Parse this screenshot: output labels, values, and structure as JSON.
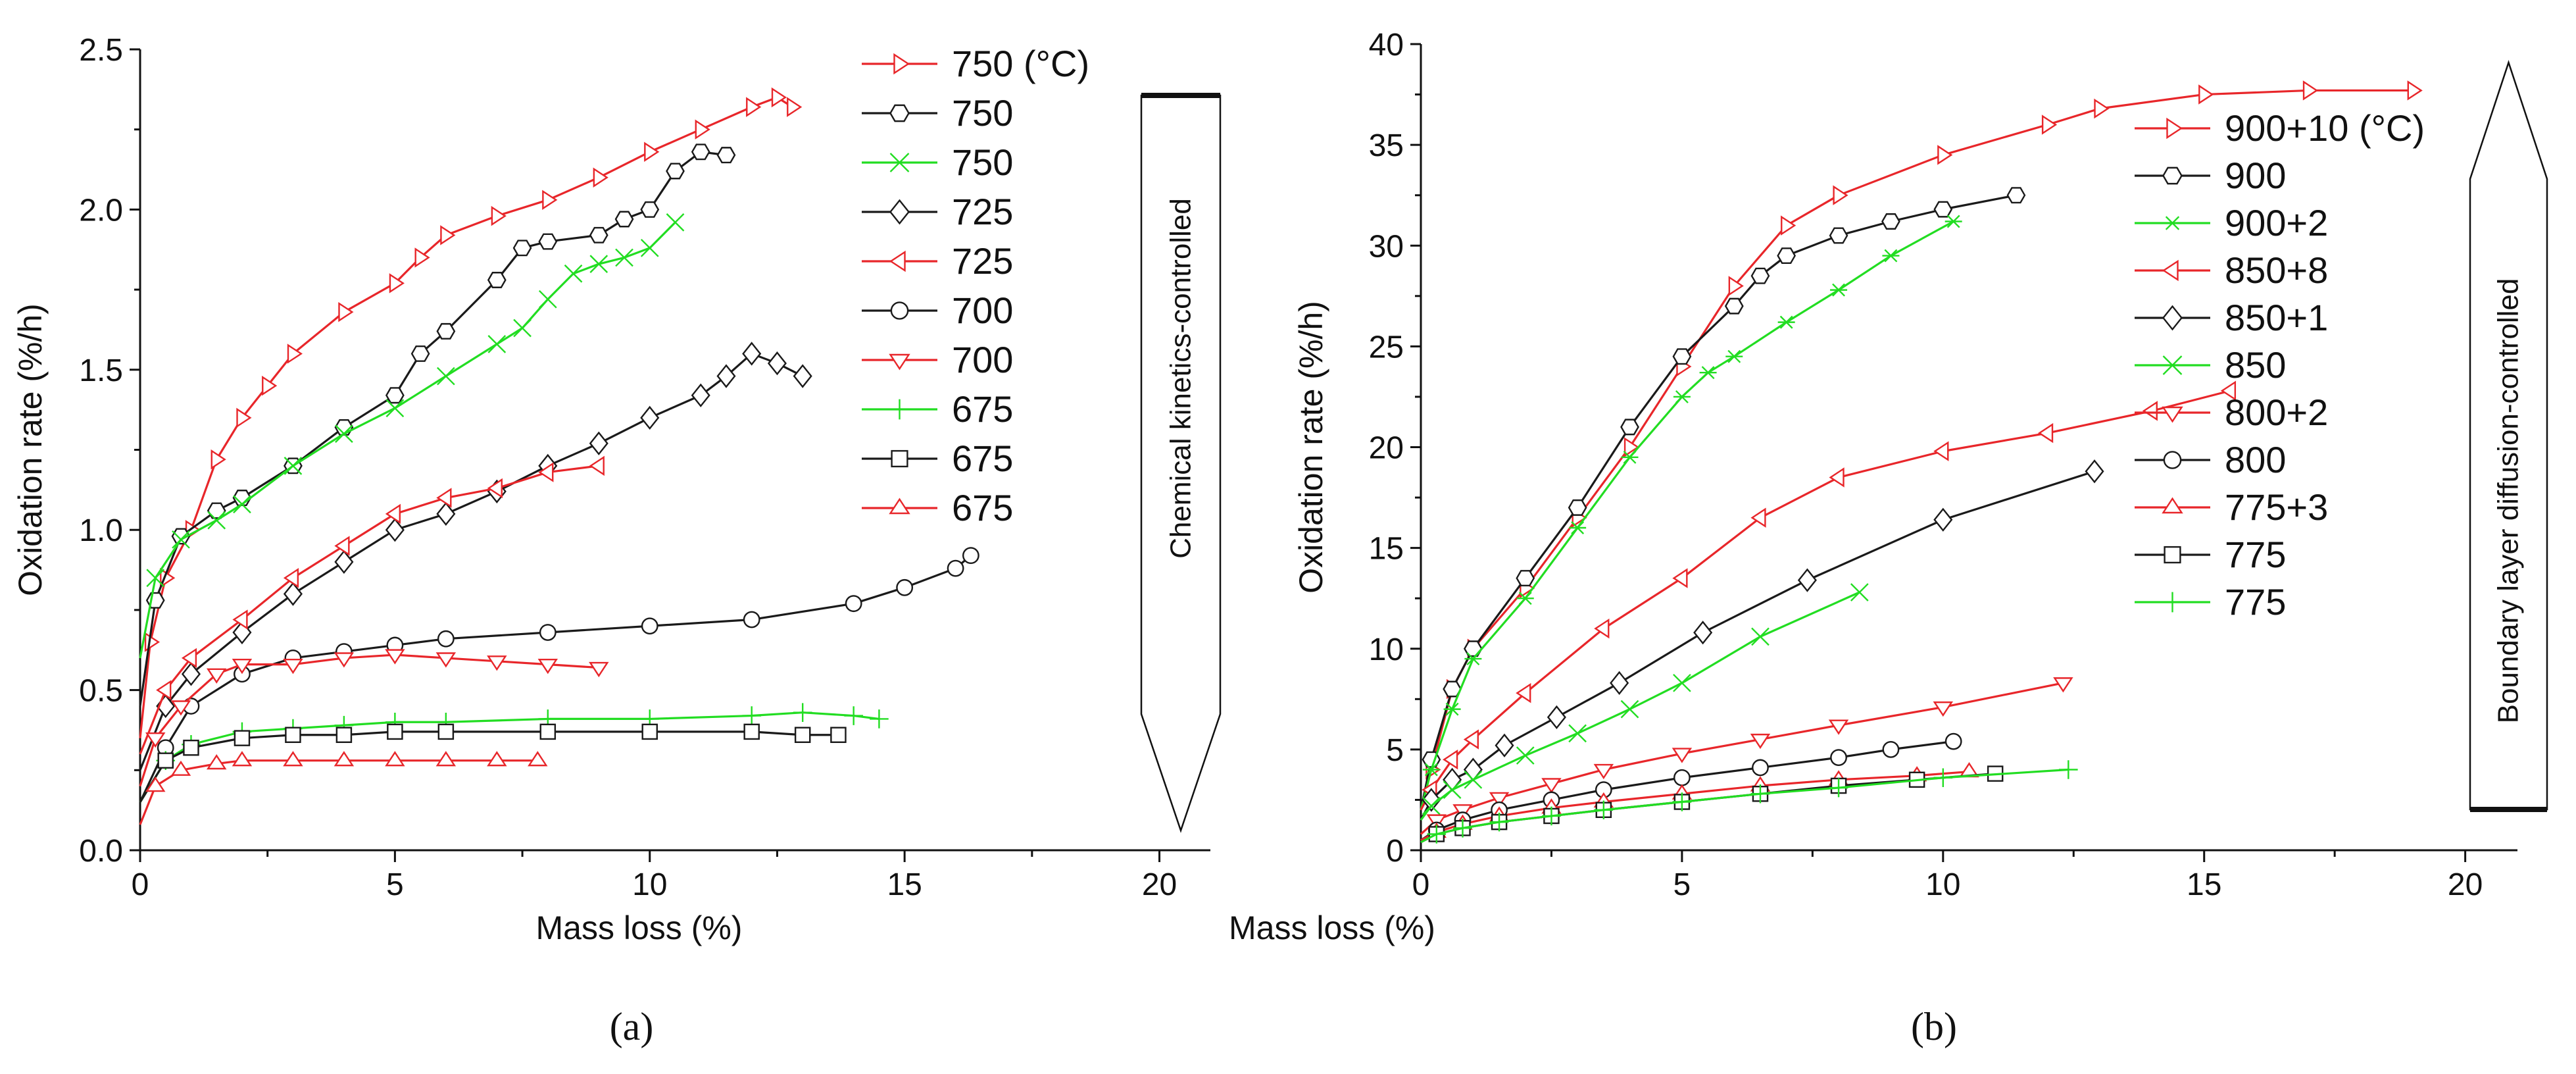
{
  "figure": {
    "panel_a_label": "(a)",
    "panel_b_label": "(b)"
  },
  "chart_data": [
    {
      "type": "line",
      "panel": "(a)",
      "title": "",
      "xlabel": "Mass loss (%)",
      "ylabel": "Oxidation rate (%/h)",
      "xlim": [
        0,
        21
      ],
      "ylim": [
        0,
        2.5
      ],
      "xticks": [
        "0",
        "5",
        "10",
        "15",
        "20"
      ],
      "yticks": [
        "0.0",
        "0.5",
        "1.0",
        "1.5",
        "2.0",
        "2.5"
      ],
      "regime_label": "Chemical kinetics-controlled",
      "legend_position": "top-right",
      "series": [
        {
          "name": "750 (°C)",
          "color": "#e8262a",
          "marker": "triangle-right",
          "x": [
            0,
            0.2,
            0.5,
            1,
            1.5,
            2,
            2.5,
            3,
            4,
            5,
            5.5,
            6,
            7,
            8,
            9,
            10,
            11,
            12,
            12.5,
            12.8
          ],
          "y": [
            0.35,
            0.65,
            0.85,
            1.0,
            1.22,
            1.35,
            1.45,
            1.55,
            1.68,
            1.77,
            1.85,
            1.92,
            1.98,
            2.03,
            2.1,
            2.18,
            2.25,
            2.32,
            2.35,
            2.32
          ]
        },
        {
          "name": "750",
          "color": "#1a1a1a",
          "marker": "hexagon",
          "x": [
            0,
            0.3,
            0.8,
            1.5,
            2,
            3,
            4,
            5,
            5.5,
            6,
            7,
            7.5,
            8,
            9,
            9.5,
            10,
            10.5,
            11,
            11.5
          ],
          "y": [
            0.45,
            0.78,
            0.98,
            1.06,
            1.1,
            1.2,
            1.32,
            1.42,
            1.55,
            1.62,
            1.78,
            1.88,
            1.9,
            1.92,
            1.97,
            2.0,
            2.12,
            2.18,
            2.17
          ]
        },
        {
          "name": "750",
          "color": "#22dd22",
          "marker": "x",
          "x": [
            0,
            0.3,
            0.8,
            1.5,
            2,
            3,
            4,
            5,
            6,
            7,
            7.5,
            8,
            8.5,
            9,
            9.5,
            10,
            10.5
          ],
          "y": [
            0.6,
            0.85,
            0.97,
            1.03,
            1.08,
            1.2,
            1.3,
            1.38,
            1.48,
            1.58,
            1.63,
            1.72,
            1.8,
            1.83,
            1.85,
            1.88,
            1.96
          ]
        },
        {
          "name": "725",
          "color": "#1a1a1a",
          "marker": "diamond",
          "x": [
            0,
            0.5,
            1,
            2,
            3,
            4,
            5,
            6,
            7,
            8,
            9,
            10,
            11,
            11.5,
            12,
            12.5,
            13
          ],
          "y": [
            0.25,
            0.45,
            0.55,
            0.68,
            0.8,
            0.9,
            1.0,
            1.05,
            1.12,
            1.2,
            1.27,
            1.35,
            1.42,
            1.48,
            1.55,
            1.52,
            1.48
          ]
        },
        {
          "name": "725",
          "color": "#e8262a",
          "marker": "triangle-left",
          "x": [
            0,
            0.5,
            1,
            2,
            3,
            4,
            5,
            6,
            7,
            8,
            9
          ],
          "y": [
            0.3,
            0.5,
            0.6,
            0.72,
            0.85,
            0.95,
            1.05,
            1.1,
            1.13,
            1.18,
            1.2
          ]
        },
        {
          "name": "700",
          "color": "#1a1a1a",
          "marker": "circle",
          "x": [
            0,
            0.5,
            1,
            2,
            3,
            4,
            5,
            6,
            8,
            10,
            12,
            14,
            15,
            16,
            16.3
          ],
          "y": [
            0.15,
            0.32,
            0.45,
            0.55,
            0.6,
            0.62,
            0.64,
            0.66,
            0.68,
            0.7,
            0.72,
            0.77,
            0.82,
            0.88,
            0.92
          ]
        },
        {
          "name": "700",
          "color": "#e8262a",
          "marker": "triangle-down",
          "x": [
            0,
            0.3,
            0.8,
            1.5,
            2,
            3,
            4,
            5,
            6,
            7,
            8,
            9
          ],
          "y": [
            0.2,
            0.35,
            0.45,
            0.55,
            0.58,
            0.58,
            0.6,
            0.61,
            0.6,
            0.59,
            0.58,
            0.57
          ]
        },
        {
          "name": "675",
          "color": "#22dd22",
          "marker": "plus",
          "x": [
            0,
            0.5,
            1,
            2,
            3,
            4,
            5,
            6,
            8,
            10,
            12,
            13,
            14,
            14.5
          ],
          "y": [
            0.15,
            0.28,
            0.33,
            0.37,
            0.38,
            0.39,
            0.4,
            0.4,
            0.41,
            0.41,
            0.42,
            0.43,
            0.42,
            0.41
          ]
        },
        {
          "name": "675",
          "color": "#1a1a1a",
          "marker": "square",
          "x": [
            0,
            0.5,
            1,
            2,
            3,
            4,
            5,
            6,
            8,
            10,
            12,
            13,
            13.7
          ],
          "y": [
            0.15,
            0.28,
            0.32,
            0.35,
            0.36,
            0.36,
            0.37,
            0.37,
            0.37,
            0.37,
            0.37,
            0.36,
            0.36
          ]
        },
        {
          "name": "675",
          "color": "#e8262a",
          "marker": "triangle-up",
          "x": [
            0,
            0.3,
            0.8,
            1.5,
            2,
            3,
            4,
            5,
            6,
            7,
            7.8
          ],
          "y": [
            0.08,
            0.2,
            0.25,
            0.27,
            0.28,
            0.28,
            0.28,
            0.28,
            0.28,
            0.28,
            0.28
          ]
        }
      ]
    },
    {
      "type": "line",
      "panel": "(b)",
      "title": "",
      "xlabel": "Mass loss (%)",
      "ylabel": "Oxidation rate (%/h)",
      "xlim": [
        0,
        21
      ],
      "ylim": [
        0,
        40
      ],
      "xticks": [
        "0",
        "5",
        "10",
        "15",
        "20"
      ],
      "yticks": [
        "0",
        "5",
        "10",
        "15",
        "20",
        "25",
        "30",
        "35",
        "40"
      ],
      "regime_label": "Boundary layer diffusion-controlled",
      "legend_position": "top-right",
      "series": [
        {
          "name": "900+10 (°C)",
          "color": "#e8262a",
          "marker": "triangle-right",
          "x": [
            0,
            0.2,
            0.6,
            1,
            2,
            3,
            4,
            5,
            6,
            7,
            8,
            10,
            12,
            13,
            15,
            17,
            19
          ],
          "y": [
            2,
            4,
            8,
            10,
            13,
            16.5,
            20,
            24,
            28,
            31,
            32.5,
            34.5,
            36,
            36.8,
            37.5,
            37.7,
            37.7
          ]
        },
        {
          "name": "900",
          "color": "#1a1a1a",
          "marker": "hexagon",
          "x": [
            0,
            0.2,
            0.6,
            1,
            2,
            3,
            4,
            5,
            6,
            6.5,
            7,
            8,
            9,
            10,
            11.4
          ],
          "y": [
            2,
            4.5,
            8,
            10,
            13.5,
            17,
            21,
            24.5,
            27,
            28.5,
            29.5,
            30.5,
            31.2,
            31.8,
            32.5
          ]
        },
        {
          "name": "900+2",
          "color": "#22dd22",
          "marker": "asterisk",
          "x": [
            0,
            0.2,
            0.6,
            1,
            2,
            3,
            4,
            5,
            5.5,
            6,
            7,
            8,
            9,
            10.2
          ],
          "y": [
            2,
            4,
            7,
            9.5,
            12.5,
            16,
            19.5,
            22.5,
            23.7,
            24.5,
            26.2,
            27.8,
            29.5,
            31.2
          ]
        },
        {
          "name": "850+8",
          "color": "#e8262a",
          "marker": "triangle-left",
          "x": [
            0,
            0.2,
            0.6,
            1,
            2,
            3.5,
            5,
            6.5,
            8,
            10,
            12,
            14,
            15.5
          ],
          "y": [
            2,
            3,
            4.5,
            5.5,
            7.8,
            11,
            13.5,
            16.5,
            18.5,
            19.8,
            20.7,
            21.8,
            22.8
          ]
        },
        {
          "name": "850+1",
          "color": "#1a1a1a",
          "marker": "diamond",
          "x": [
            0,
            0.2,
            0.6,
            1,
            1.6,
            2.6,
            3.8,
            5.4,
            7.4,
            10,
            12.9
          ],
          "y": [
            1.5,
            2.5,
            3.5,
            4,
            5.2,
            6.6,
            8.3,
            10.8,
            13.4,
            16.4,
            18.8
          ]
        },
        {
          "name": "850",
          "color": "#22dd22",
          "marker": "x",
          "x": [
            0,
            0.2,
            0.6,
            1,
            2,
            3,
            4,
            5,
            6.5,
            8.4
          ],
          "y": [
            1.5,
            2.2,
            3,
            3.5,
            4.7,
            5.8,
            7,
            8.3,
            10.6,
            12.8
          ]
        },
        {
          "name": "800+2",
          "color": "#e8262a",
          "marker": "triangle-down",
          "x": [
            0,
            0.3,
            0.8,
            1.5,
            2.5,
            3.5,
            5,
            6.5,
            8,
            10,
            12.3
          ],
          "y": [
            0.8,
            1.5,
            2,
            2.6,
            3.3,
            4,
            4.8,
            5.5,
            6.2,
            7.1,
            8.3
          ]
        },
        {
          "name": "800",
          "color": "#1a1a1a",
          "marker": "circle",
          "x": [
            0,
            0.3,
            0.8,
            1.5,
            2.5,
            3.5,
            5,
            6.5,
            8,
            9,
            10.2
          ],
          "y": [
            0.5,
            1,
            1.5,
            2,
            2.5,
            3,
            3.6,
            4.1,
            4.6,
            5,
            5.4
          ]
        },
        {
          "name": "775+3",
          "color": "#e8262a",
          "marker": "triangle-up",
          "x": [
            0,
            0.3,
            0.8,
            1.5,
            2.5,
            3.5,
            5,
            6.5,
            8,
            9.5,
            10.5
          ],
          "y": [
            0.5,
            0.9,
            1.3,
            1.7,
            2.1,
            2.4,
            2.8,
            3.2,
            3.5,
            3.7,
            3.9
          ]
        },
        {
          "name": "775",
          "color": "#1a1a1a",
          "marker": "square",
          "x": [
            0,
            0.3,
            0.8,
            1.5,
            2.5,
            3.5,
            5,
            6.5,
            8,
            9.5,
            11
          ],
          "y": [
            0.4,
            0.8,
            1.1,
            1.4,
            1.7,
            2,
            2.4,
            2.8,
            3.2,
            3.5,
            3.8
          ]
        },
        {
          "name": "775",
          "color": "#22dd22",
          "marker": "plus",
          "x": [
            0,
            0.3,
            0.8,
            1.5,
            2.5,
            3.5,
            5,
            6.5,
            8,
            10,
            12.4
          ],
          "y": [
            0.4,
            0.8,
            1.1,
            1.4,
            1.7,
            2,
            2.4,
            2.8,
            3.1,
            3.6,
            4.0
          ]
        }
      ]
    }
  ]
}
